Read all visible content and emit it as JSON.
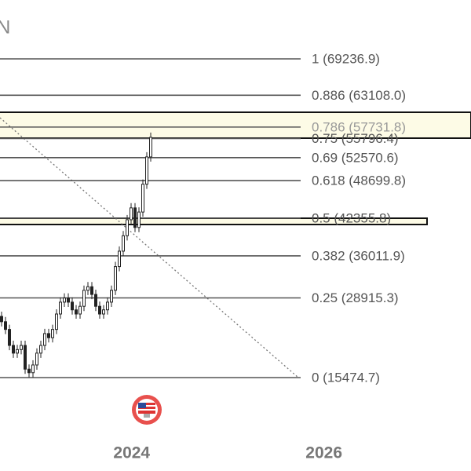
{
  "chart_data": {
    "type": "candlestick",
    "title": "N",
    "open": [
      25800,
      24900,
      23600,
      20900,
      19600,
      20200,
      20900,
      16900,
      16300,
      17600,
      19600,
      20900,
      22900,
      22200,
      23600,
      26200,
      28200,
      28900,
      28200,
      26900,
      26200,
      27500,
      30200,
      30800,
      29500,
      27500,
      26200,
      26900,
      28200,
      30200,
      34200,
      36800,
      39400,
      42100,
      44100,
      40800,
      43400,
      48100,
      52700
    ],
    "high": [
      26600,
      25700,
      24400,
      21700,
      21000,
      21700,
      21700,
      17700,
      18400,
      20400,
      21700,
      23700,
      23700,
      24400,
      27000,
      29000,
      29700,
      29700,
      29000,
      27700,
      28300,
      31000,
      31600,
      31600,
      30300,
      28300,
      27700,
      29000,
      31000,
      35000,
      37600,
      40200,
      42900,
      44900,
      44900,
      44200,
      48900,
      53500,
      56800
    ],
    "low": [
      24100,
      22800,
      20100,
      18800,
      18800,
      19400,
      16100,
      15500,
      15500,
      16800,
      18800,
      20100,
      21400,
      21400,
      22800,
      25400,
      27400,
      27400,
      26100,
      25400,
      25400,
      26700,
      29400,
      28700,
      26700,
      25400,
      25400,
      26100,
      27400,
      29400,
      33400,
      36000,
      38600,
      41300,
      40000,
      40000,
      42600,
      47300,
      51900
    ],
    "close": [
      24900,
      23600,
      20900,
      19600,
      20200,
      20900,
      16900,
      16300,
      17600,
      19600,
      20900,
      22900,
      22200,
      23600,
      26200,
      28200,
      28900,
      28200,
      26900,
      26200,
      27500,
      30200,
      30800,
      29500,
      27500,
      26200,
      26900,
      28200,
      30200,
      34200,
      36800,
      39400,
      42100,
      44100,
      40800,
      43400,
      48100,
      52700,
      56000
    ],
    "color": "#222222",
    "ylim": [
      -283,
      79168
    ],
    "xlim": [
      2022.63,
      2027.53
    ],
    "xticks": [
      2024,
      2026
    ],
    "levels": [
      {
        "value": 69236.9,
        "label": "1 (69236.9)"
      },
      {
        "value": 63108.0,
        "label": "0.886 (63108.0)"
      },
      {
        "value": 57731.8,
        "label": "0.786 (57731.8)"
      },
      {
        "value": 55796.4,
        "label": "0.75 (55796.4)"
      },
      {
        "value": 52570.6,
        "label": "0.69 (52570.6)"
      },
      {
        "value": 48699.8,
        "label": "0.618 (48699.8)"
      },
      {
        "value": 42355.8,
        "label": "0.5 (42355.8)"
      },
      {
        "value": 36011.9,
        "label": "0.382 (36011.9)"
      },
      {
        "value": 28915.3,
        "label": "0.25 (28915.3)"
      },
      {
        "value": 15474.7,
        "label": "0 (15474.7)"
      }
    ]
  }
}
